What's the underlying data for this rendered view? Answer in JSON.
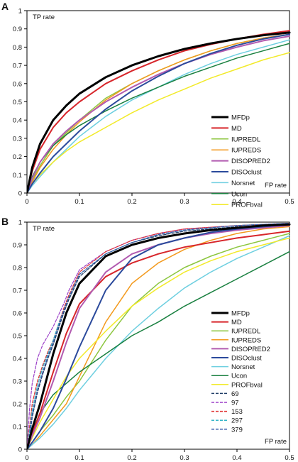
{
  "chart_data": [
    {
      "panel": "A",
      "type": "line",
      "ylabel": "TP rate",
      "xlabel": "FP rate",
      "xlim": [
        0,
        0.5
      ],
      "ylim": [
        0,
        1
      ],
      "x_ticks": [
        "0",
        "0.1",
        "0.2",
        "0.3",
        "0.4",
        "0.5"
      ],
      "y_ticks": [
        "0",
        "0.1",
        "0.2",
        "0.3",
        "0.4",
        "0.5",
        "0.6",
        "0.7",
        "0.8",
        "0.9",
        "1"
      ],
      "grid": false,
      "legend": "bottom-right",
      "series": [
        {
          "name": "MFDp",
          "color": "#000000",
          "width": 3,
          "dash": "",
          "x": [
            0,
            0.01,
            0.025,
            0.05,
            0.075,
            0.1,
            0.15,
            0.2,
            0.25,
            0.3,
            0.35,
            0.4,
            0.45,
            0.5
          ],
          "y": [
            0,
            0.14,
            0.27,
            0.4,
            0.48,
            0.545,
            0.635,
            0.7,
            0.75,
            0.79,
            0.82,
            0.845,
            0.865,
            0.88
          ]
        },
        {
          "name": "MD",
          "color": "#d7262b",
          "width": 2,
          "dash": "",
          "x": [
            0,
            0.01,
            0.025,
            0.05,
            0.075,
            0.1,
            0.15,
            0.2,
            0.25,
            0.3,
            0.35,
            0.4,
            0.45,
            0.5
          ],
          "y": [
            0,
            0.12,
            0.24,
            0.36,
            0.44,
            0.5,
            0.6,
            0.67,
            0.73,
            0.78,
            0.815,
            0.845,
            0.87,
            0.89
          ]
        },
        {
          "name": "IUPREDL",
          "color": "#8cc63f",
          "width": 1.5,
          "dash": "",
          "x": [
            0,
            0.01,
            0.025,
            0.05,
            0.075,
            0.1,
            0.15,
            0.2,
            0.25,
            0.3,
            0.35,
            0.4,
            0.45,
            0.5
          ],
          "y": [
            0,
            0.07,
            0.15,
            0.26,
            0.33,
            0.4,
            0.52,
            0.6,
            0.67,
            0.73,
            0.78,
            0.82,
            0.85,
            0.87
          ]
        },
        {
          "name": "IUPREDS",
          "color": "#f39a1e",
          "width": 1.5,
          "dash": "",
          "x": [
            0,
            0.01,
            0.025,
            0.05,
            0.075,
            0.1,
            0.15,
            0.2,
            0.25,
            0.3,
            0.35,
            0.4,
            0.45,
            0.5
          ],
          "y": [
            0,
            0.06,
            0.14,
            0.24,
            0.32,
            0.39,
            0.51,
            0.6,
            0.67,
            0.73,
            0.78,
            0.82,
            0.85,
            0.87
          ]
        },
        {
          "name": "DISOPRED2",
          "color": "#b25bb0",
          "width": 2,
          "dash": "",
          "x": [
            0,
            0.01,
            0.025,
            0.05,
            0.075,
            0.1,
            0.15,
            0.2,
            0.25,
            0.3,
            0.35,
            0.4,
            0.45,
            0.5
          ],
          "y": [
            0,
            0.08,
            0.17,
            0.27,
            0.34,
            0.4,
            0.5,
            0.58,
            0.65,
            0.71,
            0.76,
            0.8,
            0.835,
            0.86
          ]
        },
        {
          "name": "DISOclust",
          "color": "#2b4a9c",
          "width": 2,
          "dash": "",
          "x": [
            0,
            0.01,
            0.025,
            0.05,
            0.075,
            0.1,
            0.15,
            0.2,
            0.25,
            0.3,
            0.35,
            0.4,
            0.45,
            0.5
          ],
          "y": [
            0,
            0.05,
            0.11,
            0.2,
            0.27,
            0.34,
            0.46,
            0.56,
            0.64,
            0.71,
            0.765,
            0.81,
            0.845,
            0.87
          ]
        },
        {
          "name": "Norsnet",
          "color": "#6ecfe0",
          "width": 1.5,
          "dash": "",
          "x": [
            0,
            0.01,
            0.025,
            0.05,
            0.075,
            0.1,
            0.15,
            0.2,
            0.25,
            0.3,
            0.35,
            0.4,
            0.45,
            0.5
          ],
          "y": [
            0,
            0.04,
            0.09,
            0.17,
            0.24,
            0.31,
            0.42,
            0.51,
            0.58,
            0.65,
            0.71,
            0.76,
            0.8,
            0.84
          ]
        },
        {
          "name": "Ucon",
          "color": "#1a8040",
          "width": 1.5,
          "dash": "",
          "x": [
            0,
            0.01,
            0.025,
            0.05,
            0.075,
            0.1,
            0.15,
            0.2,
            0.25,
            0.3,
            0.35,
            0.4,
            0.45,
            0.5
          ],
          "y": [
            0,
            0.09,
            0.17,
            0.26,
            0.32,
            0.37,
            0.45,
            0.52,
            0.58,
            0.64,
            0.69,
            0.74,
            0.78,
            0.82
          ]
        },
        {
          "name": "PROFbval",
          "color": "#f2ea2a",
          "width": 1.5,
          "dash": "",
          "x": [
            0,
            0.01,
            0.025,
            0.05,
            0.075,
            0.1,
            0.15,
            0.2,
            0.25,
            0.3,
            0.35,
            0.4,
            0.45,
            0.5
          ],
          "y": [
            0,
            0.05,
            0.1,
            0.17,
            0.23,
            0.28,
            0.36,
            0.44,
            0.51,
            0.57,
            0.63,
            0.68,
            0.73,
            0.77
          ]
        }
      ]
    },
    {
      "panel": "B",
      "type": "line",
      "ylabel": "TP rate",
      "xlabel": "FP rate",
      "xlim": [
        0,
        0.5
      ],
      "ylim": [
        0,
        1
      ],
      "x_ticks": [
        "0",
        "0.1",
        "0.2",
        "0.3",
        "0.4",
        "0.5"
      ],
      "y_ticks": [
        "0",
        "0.1",
        "0.2",
        "0.3",
        "0.4",
        "0.5",
        "0.6",
        "0.7",
        "0.8",
        "0.9",
        "1"
      ],
      "grid": false,
      "legend": "bottom-right",
      "series": [
        {
          "name": "MFDp",
          "color": "#000000",
          "width": 3,
          "dash": "",
          "x": [
            0,
            0.01,
            0.025,
            0.05,
            0.075,
            0.1,
            0.15,
            0.2,
            0.25,
            0.3,
            0.35,
            0.4,
            0.45,
            0.5
          ],
          "y": [
            0,
            0.09,
            0.2,
            0.42,
            0.6,
            0.73,
            0.85,
            0.9,
            0.93,
            0.95,
            0.965,
            0.975,
            0.985,
            0.99
          ]
        },
        {
          "name": "MD",
          "color": "#d7262b",
          "width": 2,
          "dash": "",
          "x": [
            0,
            0.01,
            0.025,
            0.05,
            0.075,
            0.1,
            0.15,
            0.2,
            0.25,
            0.3,
            0.35,
            0.4,
            0.45,
            0.5
          ],
          "y": [
            0,
            0.07,
            0.16,
            0.34,
            0.51,
            0.64,
            0.76,
            0.82,
            0.86,
            0.89,
            0.91,
            0.93,
            0.945,
            0.96
          ]
        },
        {
          "name": "IUPREDL",
          "color": "#8cc63f",
          "width": 1.5,
          "dash": "",
          "x": [
            0,
            0.01,
            0.025,
            0.05,
            0.075,
            0.1,
            0.15,
            0.2,
            0.25,
            0.3,
            0.35,
            0.4,
            0.45,
            0.5
          ],
          "y": [
            0,
            0.03,
            0.08,
            0.15,
            0.23,
            0.3,
            0.48,
            0.63,
            0.73,
            0.8,
            0.85,
            0.89,
            0.92,
            0.95
          ]
        },
        {
          "name": "IUPREDS",
          "color": "#f39a1e",
          "width": 1.5,
          "dash": "",
          "x": [
            0,
            0.01,
            0.025,
            0.05,
            0.075,
            0.1,
            0.15,
            0.2,
            0.25,
            0.3,
            0.35,
            0.4,
            0.45,
            0.5
          ],
          "y": [
            0,
            0.02,
            0.06,
            0.13,
            0.2,
            0.32,
            0.56,
            0.73,
            0.82,
            0.88,
            0.92,
            0.95,
            0.97,
            0.98
          ]
        },
        {
          "name": "DISOPRED2",
          "color": "#b25bb0",
          "width": 2,
          "dash": "",
          "x": [
            0,
            0.01,
            0.025,
            0.05,
            0.075,
            0.1,
            0.15,
            0.2,
            0.25,
            0.3,
            0.35,
            0.4,
            0.45,
            0.5
          ],
          "y": [
            0,
            0.06,
            0.14,
            0.3,
            0.47,
            0.62,
            0.78,
            0.86,
            0.9,
            0.93,
            0.95,
            0.965,
            0.975,
            0.985
          ]
        },
        {
          "name": "DISOclust",
          "color": "#2b4a9c",
          "width": 2,
          "dash": "",
          "x": [
            0,
            0.01,
            0.025,
            0.05,
            0.075,
            0.1,
            0.15,
            0.2,
            0.25,
            0.3,
            0.35,
            0.4,
            0.45,
            0.5
          ],
          "y": [
            0,
            0.03,
            0.08,
            0.18,
            0.31,
            0.45,
            0.7,
            0.84,
            0.9,
            0.93,
            0.955,
            0.97,
            0.98,
            0.99
          ]
        },
        {
          "name": "Norsnet",
          "color": "#6ecfe0",
          "width": 1.5,
          "dash": "",
          "x": [
            0,
            0.01,
            0.025,
            0.05,
            0.075,
            0.1,
            0.15,
            0.2,
            0.25,
            0.3,
            0.35,
            0.4,
            0.45,
            0.5
          ],
          "y": [
            0,
            0.02,
            0.05,
            0.11,
            0.18,
            0.26,
            0.4,
            0.52,
            0.62,
            0.71,
            0.78,
            0.84,
            0.89,
            0.94
          ]
        },
        {
          "name": "Ucon",
          "color": "#1a8040",
          "width": 1.5,
          "dash": "",
          "x": [
            0,
            0.01,
            0.025,
            0.05,
            0.075,
            0.1,
            0.15,
            0.2,
            0.25,
            0.3,
            0.35,
            0.4,
            0.45,
            0.5
          ],
          "y": [
            0,
            0.08,
            0.16,
            0.24,
            0.29,
            0.34,
            0.42,
            0.5,
            0.56,
            0.63,
            0.69,
            0.75,
            0.81,
            0.87
          ]
        },
        {
          "name": "PROFbval",
          "color": "#f2ea2a",
          "width": 1.5,
          "dash": "",
          "x": [
            0,
            0.01,
            0.025,
            0.05,
            0.075,
            0.1,
            0.15,
            0.2,
            0.25,
            0.3,
            0.35,
            0.4,
            0.45,
            0.5
          ],
          "y": [
            0,
            0.05,
            0.12,
            0.22,
            0.32,
            0.4,
            0.52,
            0.63,
            0.71,
            0.78,
            0.83,
            0.87,
            0.9,
            0.93
          ]
        },
        {
          "name": "69",
          "color": "#1f3d66",
          "width": 1.2,
          "dash": "4 2",
          "x": [
            0,
            0.005,
            0.01,
            0.02,
            0.03,
            0.04,
            0.05,
            0.06,
            0.07,
            0.08,
            0.1,
            0.15,
            0.2,
            0.25,
            0.3,
            0.4,
            0.5
          ],
          "y": [
            0,
            0.05,
            0.14,
            0.25,
            0.33,
            0.4,
            0.46,
            0.53,
            0.6,
            0.66,
            0.76,
            0.86,
            0.91,
            0.94,
            0.96,
            0.98,
            0.99
          ]
        },
        {
          "name": "97",
          "color": "#9b3ec8",
          "width": 1.2,
          "dash": "4 2",
          "x": [
            0,
            0.005,
            0.01,
            0.02,
            0.03,
            0.04,
            0.05,
            0.06,
            0.07,
            0.08,
            0.1,
            0.15,
            0.2,
            0.25,
            0.3,
            0.4,
            0.5
          ],
          "y": [
            0,
            0.18,
            0.29,
            0.4,
            0.46,
            0.5,
            0.54,
            0.59,
            0.64,
            0.7,
            0.79,
            0.87,
            0.92,
            0.95,
            0.97,
            0.985,
            0.995
          ]
        },
        {
          "name": "153",
          "color": "#e03030",
          "width": 1.2,
          "dash": "4 2",
          "x": [
            0,
            0.005,
            0.01,
            0.02,
            0.03,
            0.04,
            0.05,
            0.06,
            0.07,
            0.08,
            0.1,
            0.15,
            0.2,
            0.25,
            0.3,
            0.4,
            0.5
          ],
          "y": [
            0,
            0.1,
            0.2,
            0.3,
            0.37,
            0.43,
            0.48,
            0.55,
            0.62,
            0.68,
            0.78,
            0.87,
            0.92,
            0.95,
            0.97,
            0.985,
            0.995
          ]
        },
        {
          "name": "297",
          "color": "#34b5c8",
          "width": 1.2,
          "dash": "4 2",
          "x": [
            0,
            0.005,
            0.01,
            0.02,
            0.03,
            0.04,
            0.05,
            0.06,
            0.07,
            0.08,
            0.1,
            0.15,
            0.2,
            0.25,
            0.3,
            0.4,
            0.5
          ],
          "y": [
            0,
            0.08,
            0.17,
            0.28,
            0.36,
            0.42,
            0.48,
            0.55,
            0.61,
            0.67,
            0.77,
            0.86,
            0.91,
            0.945,
            0.965,
            0.985,
            0.995
          ]
        },
        {
          "name": "379",
          "color": "#3a5aa8",
          "width": 1.2,
          "dash": "4 2",
          "x": [
            0,
            0.005,
            0.01,
            0.02,
            0.03,
            0.04,
            0.05,
            0.06,
            0.07,
            0.08,
            0.1,
            0.15,
            0.2,
            0.25,
            0.3,
            0.4,
            0.5
          ],
          "y": [
            0,
            0.06,
            0.15,
            0.26,
            0.34,
            0.41,
            0.47,
            0.54,
            0.61,
            0.67,
            0.77,
            0.86,
            0.91,
            0.945,
            0.965,
            0.985,
            0.995
          ]
        }
      ]
    }
  ]
}
